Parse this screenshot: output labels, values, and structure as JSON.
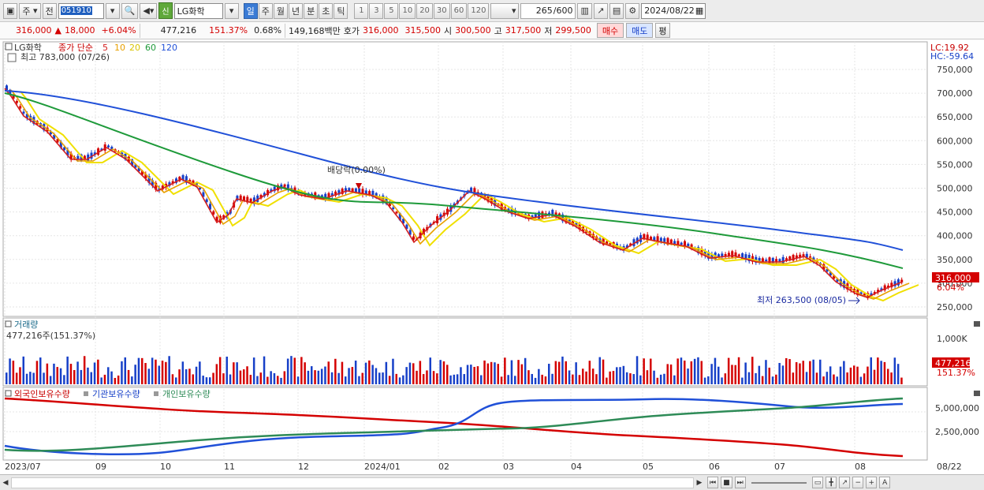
{
  "toolbar": {
    "type_label": "주",
    "jeon_label": "전",
    "code_value": "051910",
    "stock_badge": "신",
    "stock_name": "LG화학",
    "periods": [
      "일",
      "주",
      "월",
      "년",
      "분",
      "초",
      "틱"
    ],
    "active_period": "일",
    "intervals": [
      "1",
      "3",
      "5",
      "10",
      "20",
      "30",
      "60",
      "120"
    ],
    "count_value": "265",
    "count_total": "/600",
    "date_value": "2024/08/22"
  },
  "quote": {
    "price": "316,000",
    "change_arrow": "▲",
    "change": "18,000",
    "change_pct": "+6.04%",
    "volume": "477,216",
    "volume_pct": "151.37%",
    "turnover": "0.68%",
    "amount": "149,168백만",
    "hoga_label": "호가",
    "ask": "316,000",
    "bid": "315,500",
    "open_label": "시",
    "open": "300,500",
    "high_label": "고",
    "high": "317,500",
    "low_label": "저",
    "low": "299,500",
    "buy_button": "매수",
    "sell_button": "매도",
    "eval_button": "평"
  },
  "price_panel": {
    "stock_tag": "LG화학",
    "ma_label": "종가 단순",
    "ma_periods": [
      "5",
      "10",
      "20",
      "60",
      "120"
    ],
    "ma_colors": [
      "#d42020",
      "#e8a000",
      "#f0e000",
      "#1e9a3a",
      "#2050d8"
    ],
    "high_marker": "최고 783,000 (07/26)",
    "low_marker": "최저 263,500 (08/05)",
    "dividend_marker": "배당락(0.00%)",
    "lc_label": "LC:19.92",
    "hc_label": "HC:-59.64",
    "y_ticks": [
      "750,000",
      "700,000",
      "650,000",
      "600,000",
      "550,000",
      "500,000",
      "450,000",
      "400,000",
      "350,000",
      "300,000",
      "250,000"
    ],
    "last_price_tag": "316,000",
    "last_pct_tag": "6.04%"
  },
  "volume_panel": {
    "title": "거래량",
    "value_label": "477,216주(151.37%)",
    "y_tick": "1,000K",
    "last_tag": "477,216",
    "last_pct": "151.37%"
  },
  "holding_panel": {
    "legend": [
      "외국인보유수량",
      "기관보유수량",
      "개인보유수량"
    ],
    "legend_colors": [
      "#d40000",
      "#2050d8",
      "#2e8b57"
    ],
    "y_ticks": [
      "5,000,000",
      "2,500,000"
    ]
  },
  "x_axis": [
    "2023/07",
    "09",
    "10",
    "11",
    "12",
    "2024/01",
    "02",
    "03",
    "04",
    "05",
    "06",
    "07",
    "08",
    "08/22"
  ]
}
